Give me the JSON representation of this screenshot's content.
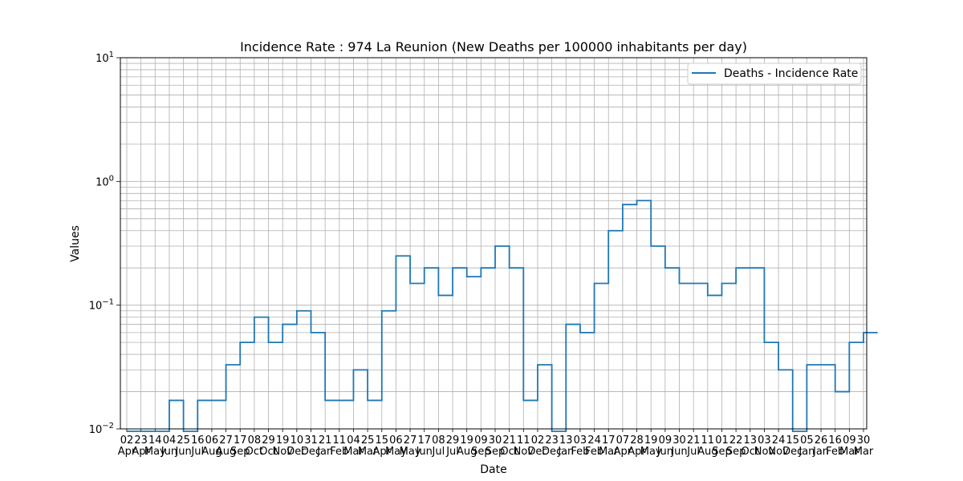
{
  "chart_data": {
    "type": "line",
    "title": "Incidence Rate : 974 La Reunion (New Deaths per 100000 inhabitants per day)",
    "xlabel": "Date",
    "ylabel": "Values",
    "yscale": "log",
    "ylim": [
      0.01,
      10
    ],
    "y_ticks": [
      {
        "value": 0.01,
        "base": "10",
        "exp": "−2"
      },
      {
        "value": 0.1,
        "base": "10",
        "exp": "−1"
      },
      {
        "value": 1,
        "base": "10",
        "exp": "0"
      },
      {
        "value": 10,
        "base": "10",
        "exp": "1"
      }
    ],
    "grid": true,
    "legend_position": "top-right",
    "color": "#1f77b4",
    "x_ticks": [
      {
        "day": "02",
        "month": "Apr"
      },
      {
        "day": "23",
        "month": "Apr"
      },
      {
        "day": "14",
        "month": "May"
      },
      {
        "day": "04",
        "month": "Jun"
      },
      {
        "day": "25",
        "month": "Jun"
      },
      {
        "day": "16",
        "month": "Jul"
      },
      {
        "day": "06",
        "month": "Aug"
      },
      {
        "day": "27",
        "month": "Aug"
      },
      {
        "day": "17",
        "month": "Sep"
      },
      {
        "day": "08",
        "month": "Oct"
      },
      {
        "day": "29",
        "month": "Oct"
      },
      {
        "day": "19",
        "month": "Nov"
      },
      {
        "day": "10",
        "month": "Dec"
      },
      {
        "day": "31",
        "month": "Dec"
      },
      {
        "day": "21",
        "month": "Jan"
      },
      {
        "day": "11",
        "month": "Feb"
      },
      {
        "day": "04",
        "month": "Mar"
      },
      {
        "day": "25",
        "month": "Mar"
      },
      {
        "day": "15",
        "month": "Apr"
      },
      {
        "day": "06",
        "month": "May"
      },
      {
        "day": "27",
        "month": "May"
      },
      {
        "day": "17",
        "month": "Jun"
      },
      {
        "day": "08",
        "month": "Jul"
      },
      {
        "day": "29",
        "month": "Jul"
      },
      {
        "day": "19",
        "month": "Aug"
      },
      {
        "day": "09",
        "month": "Sep"
      },
      {
        "day": "30",
        "month": "Sep"
      },
      {
        "day": "21",
        "month": "Oct"
      },
      {
        "day": "11",
        "month": "Nov"
      },
      {
        "day": "02",
        "month": "Dec"
      },
      {
        "day": "23",
        "month": "Dec"
      },
      {
        "day": "13",
        "month": "Jan"
      },
      {
        "day": "03",
        "month": "Feb"
      },
      {
        "day": "24",
        "month": "Feb"
      },
      {
        "day": "17",
        "month": "Mar"
      },
      {
        "day": "07",
        "month": "Apr"
      },
      {
        "day": "28",
        "month": "Apr"
      },
      {
        "day": "19",
        "month": "May"
      },
      {
        "day": "09",
        "month": "Jun"
      },
      {
        "day": "30",
        "month": "Jun"
      },
      {
        "day": "21",
        "month": "Jul"
      },
      {
        "day": "11",
        "month": "Aug"
      },
      {
        "day": "01",
        "month": "Sep"
      },
      {
        "day": "22",
        "month": "Sep"
      },
      {
        "day": "13",
        "month": "Oct"
      },
      {
        "day": "03",
        "month": "Nov"
      },
      {
        "day": "24",
        "month": "Nov"
      },
      {
        "day": "15",
        "month": "Dec"
      },
      {
        "day": "05",
        "month": "Jan"
      },
      {
        "day": "26",
        "month": "Jan"
      },
      {
        "day": "16",
        "month": "Feb"
      },
      {
        "day": "09",
        "month": "Mar"
      },
      {
        "day": "30",
        "month": "Mar"
      }
    ],
    "series": [
      {
        "name": "Deaths - Incidence Rate",
        "step_days": 21,
        "values": [
          0.008,
          0.008,
          0.008,
          0.017,
          0.008,
          0.017,
          0.017,
          0.033,
          0.05,
          0.08,
          0.05,
          0.07,
          0.09,
          0.06,
          0.017,
          0.017,
          0.03,
          0.017,
          0.09,
          0.25,
          0.15,
          0.2,
          0.12,
          0.2,
          0.17,
          0.2,
          0.3,
          0.2,
          0.017,
          0.033,
          0.008,
          0.07,
          0.06,
          0.15,
          0.4,
          0.65,
          0.7,
          0.3,
          0.2,
          0.15,
          0.15,
          0.12,
          0.15,
          0.2,
          0.2,
          0.05,
          0.03,
          0.008,
          0.033,
          0.033,
          0.02,
          0.05,
          0.06,
          0.06
        ]
      }
    ]
  }
}
